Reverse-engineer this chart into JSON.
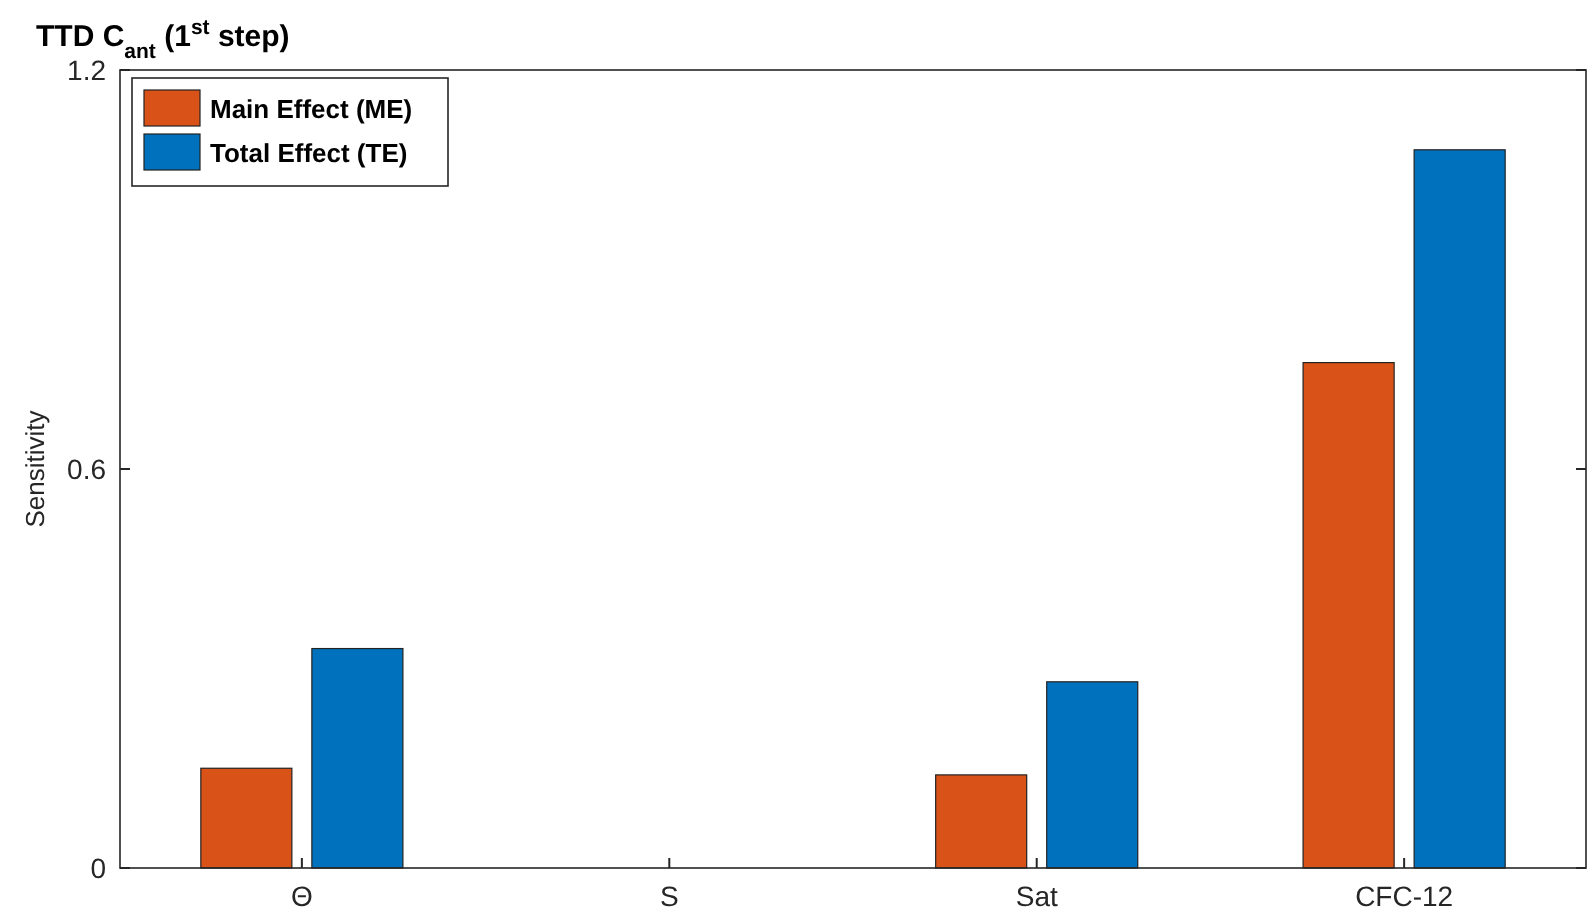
{
  "chart_data": {
    "type": "bar",
    "title": "TTD C$_{ant}$ (1$^{st}$ step)",
    "ylabel": "Sensitivity",
    "categories": [
      "Θ",
      "S",
      "Sat",
      "CFC-12"
    ],
    "series": [
      {
        "name": "Main Effect (ME)",
        "color": "#d95319",
        "values": [
          0.15,
          0,
          0.14,
          0.76
        ]
      },
      {
        "name": "Total Effect (TE)",
        "color": "#0072bd",
        "values": [
          0.33,
          0,
          0.28,
          1.08
        ]
      }
    ],
    "ylim": [
      0,
      1.2
    ],
    "yticks": [
      0,
      0.6,
      1.2
    ],
    "grid": false,
    "legend": "top left"
  }
}
